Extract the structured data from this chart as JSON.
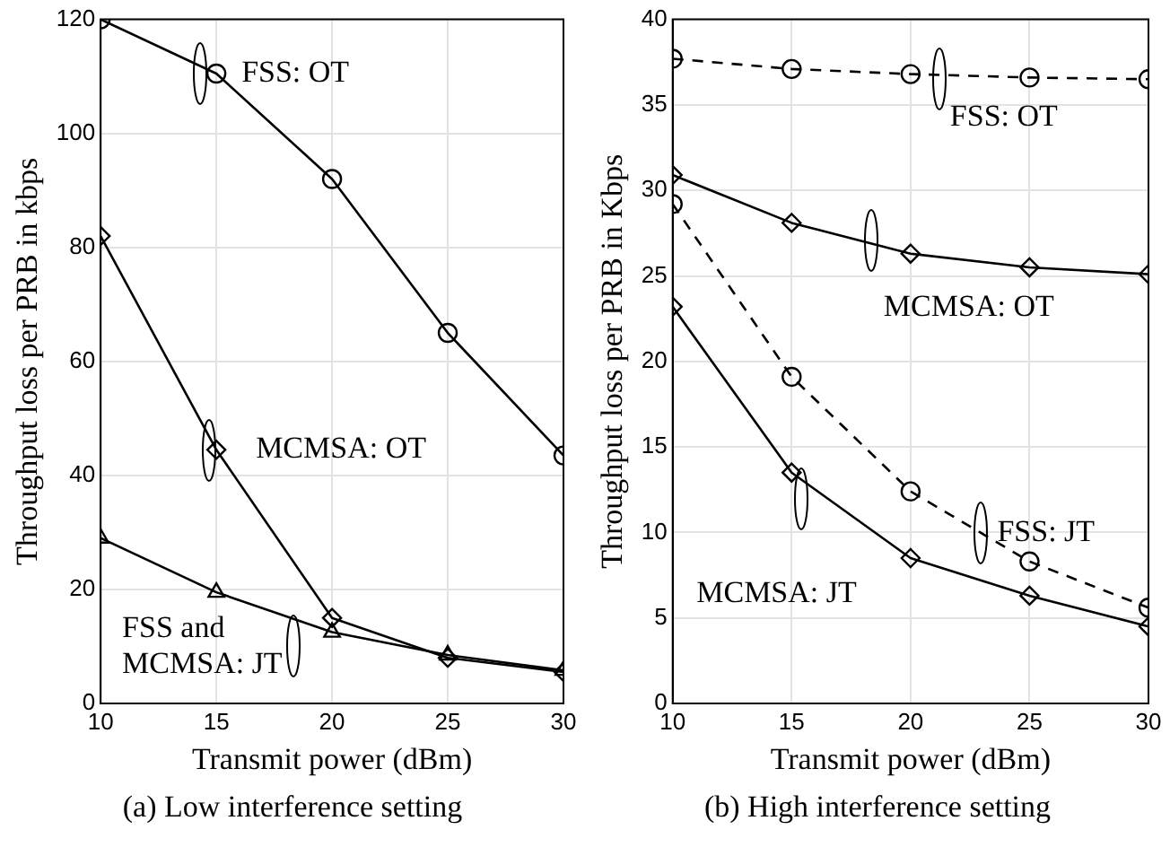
{
  "chart_data": [
    {
      "type": "line",
      "title": "(a) Low interference setting",
      "xlabel": "Transmit power (dBm)",
      "ylabel": "Throughput loss per PRB in kbps",
      "x": [
        10,
        15,
        20,
        25,
        30
      ],
      "xlim": [
        10,
        30
      ],
      "xticks": [
        10,
        15,
        20,
        25,
        30
      ],
      "ylim": [
        0,
        120
      ],
      "yticks": [
        0,
        20,
        40,
        60,
        80,
        100,
        120
      ],
      "grid": true,
      "legend": false,
      "series": [
        {
          "color": "#000000",
          "marker": "circle",
          "line_style": "solid",
          "values": [
            120,
            110.5,
            92,
            65,
            43.5
          ]
        },
        {
          "color": "#000000",
          "marker": "diamond",
          "line_style": "solid",
          "values": [
            82,
            44.5,
            15,
            8,
            5.5
          ]
        },
        {
          "color": "#000000",
          "marker": "triangle",
          "line_style": "solid",
          "values": [
            29,
            19.5,
            12.5,
            8.5,
            5.8
          ]
        }
      ],
      "annotations": [
        {
          "text": "FSS: OT",
          "x": 15,
          "y": 110.5
        },
        {
          "text": "MCMSA: OT",
          "x": 15,
          "y": 44.5
        },
        {
          "text": "FSS and\nMCMSA: JT",
          "x": 20,
          "y": 12.5
        }
      ]
    },
    {
      "type": "line",
      "title": "(b) High interference setting",
      "xlabel": "Transmit power (dBm)",
      "ylabel": "Throughput loss per PRB in Kbps",
      "x": [
        10,
        15,
        20,
        25,
        30
      ],
      "xlim": [
        10,
        30
      ],
      "xticks": [
        10,
        15,
        20,
        25,
        30
      ],
      "ylim": [
        0,
        40
      ],
      "yticks": [
        0,
        5,
        10,
        15,
        20,
        25,
        30,
        35,
        40
      ],
      "grid": true,
      "legend": false,
      "series": [
        {
          "color": "#000000",
          "marker": "circle",
          "line_style": "dashed",
          "values": [
            37.7,
            37.1,
            36.8,
            36.6,
            36.5
          ]
        },
        {
          "color": "#000000",
          "marker": "diamond",
          "line_style": "solid",
          "values": [
            30.9,
            28.1,
            26.3,
            25.5,
            25.1
          ]
        },
        {
          "color": "#000000",
          "marker": "circle",
          "line_style": "dashed",
          "values": [
            29.2,
            19.1,
            12.4,
            8.3,
            5.6
          ]
        },
        {
          "color": "#000000",
          "marker": "diamond",
          "line_style": "solid",
          "values": [
            23.2,
            13.5,
            8.5,
            6.3,
            4.5
          ]
        }
      ],
      "annotations": [
        {
          "text": "FSS: OT",
          "x": 20,
          "y": 36.8
        },
        {
          "text": "MCMSA: OT",
          "x": 20,
          "y": 26.3
        },
        {
          "text": "FSS: JT",
          "x": 25,
          "y": 8.3
        },
        "MCMSA: JT"
      ]
    }
  ]
}
